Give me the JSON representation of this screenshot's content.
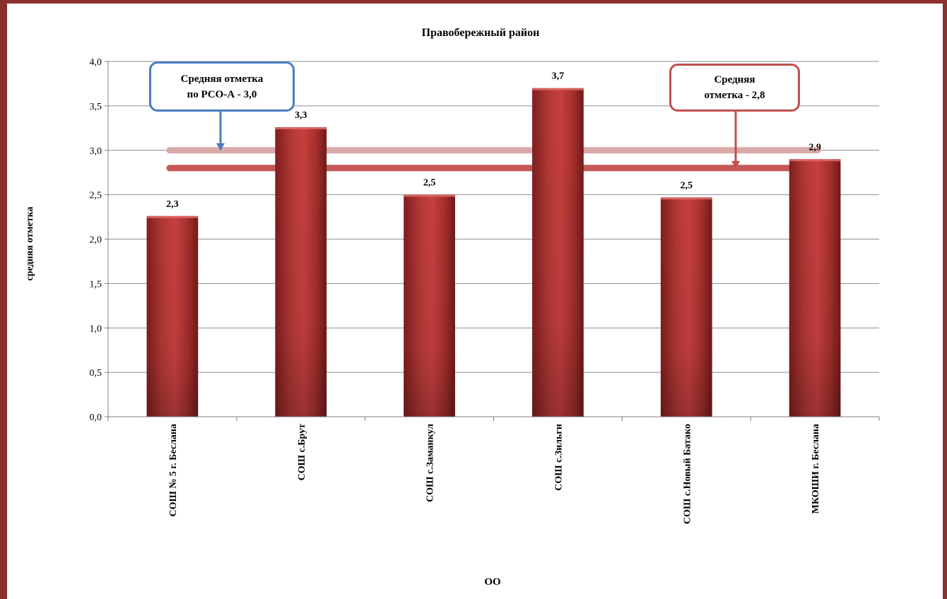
{
  "chart_data": {
    "type": "bar",
    "title": "Правобережный район",
    "xlabel": "ОО",
    "ylabel": "средняя отметка",
    "ylim": [
      0,
      4
    ],
    "ytick_step": 0.5,
    "ytick_labels": [
      "0,0",
      "0,5",
      "1,0",
      "1,5",
      "2,0",
      "2,5",
      "3,0",
      "3,5",
      "4,0"
    ],
    "grid": true,
    "categories": [
      "СОШ № 5 г. Беслана",
      "СОШ с.Брут",
      "СОШ с.Заманкул",
      "СОШ с.Зильги",
      "СОШ с.Новый Батако",
      "МКОШИ г. Беслана"
    ],
    "values": [
      2.26,
      3.26,
      2.5,
      3.7,
      2.47,
      2.9
    ],
    "value_labels": [
      "2,3",
      "3,3",
      "2,5",
      "3,7",
      "2,5",
      "2,9"
    ],
    "bar_color": "#b23a38",
    "reference_lines": [
      {
        "value": 3.0,
        "color": "#d9a6a4",
        "label_lines": [
          "Средняя отметка",
          "по РСО-А - 3,0"
        ],
        "callout_border": "#4a7dbf"
      },
      {
        "value": 2.8,
        "color": "#c0504d",
        "label_lines": [
          "Средняя",
          "отметка - 2,8"
        ],
        "callout_border": "#c0504d"
      }
    ]
  }
}
